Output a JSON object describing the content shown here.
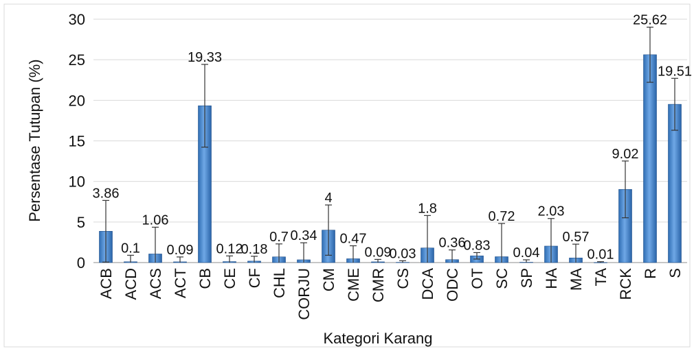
{
  "chart_data": {
    "type": "bar",
    "xlabel": "Kategori Karang",
    "ylabel": "Persentase Tutupan  (%)",
    "ylim": [
      0,
      30
    ],
    "yticks": [
      0,
      5,
      10,
      15,
      20,
      25,
      30
    ],
    "grid": true,
    "bar_color": "#3a7cc4",
    "categories": [
      "ACB",
      "ACD",
      "ACS",
      "ACT",
      "CB",
      "CE",
      "CF",
      "CHL",
      "CORJU",
      "CM",
      "CME",
      "CMR",
      "CS",
      "DCA",
      "ODC",
      "OT",
      "SC",
      "SP",
      "HA",
      "MA",
      "TA",
      "RCK",
      "R",
      "S"
    ],
    "values": [
      3.86,
      0.1,
      1.06,
      0.09,
      19.33,
      0.12,
      0.18,
      0.7,
      0.34,
      4,
      0.47,
      0.09,
      0.03,
      1.8,
      0.36,
      0.83,
      0.72,
      0.04,
      2.03,
      0.57,
      0.01,
      9.02,
      25.62,
      19.51
    ],
    "value_labels": [
      "3.86",
      "0.1",
      "1.06",
      "0.09",
      "19.33",
      "0.12",
      "0.18",
      "0.7",
      "0.34",
      "4",
      "0.47",
      "0.09",
      "0.03",
      "1.8",
      "0.36",
      "0.83",
      "0.72",
      "0.04",
      "2.03",
      "0.57",
      "0.01",
      "9.02",
      "25.62",
      "19.51"
    ],
    "error_bars": [
      3.8,
      0.8,
      3.3,
      0.6,
      5.1,
      0.7,
      0.6,
      1.6,
      2.1,
      3.1,
      1.6,
      0.3,
      0.2,
      4.0,
      1.2,
      0.4,
      4.1,
      0.3,
      3.4,
      1.7,
      0.1,
      3.5,
      3.4,
      3.2
    ]
  }
}
